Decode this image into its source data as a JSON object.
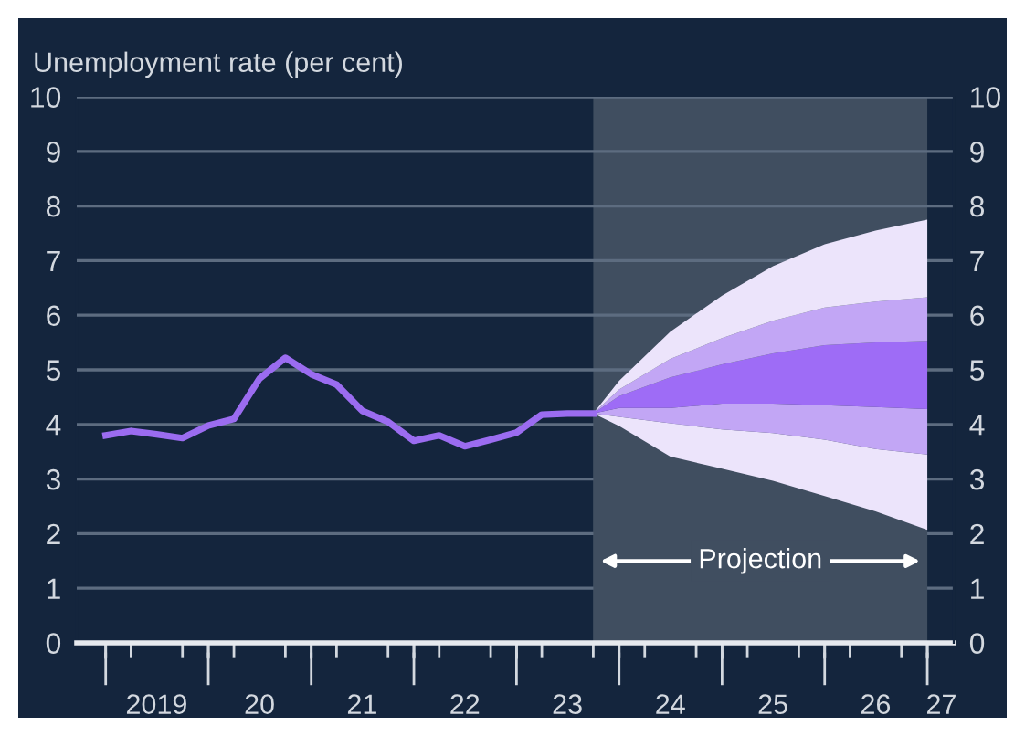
{
  "chart_data": {
    "type": "line",
    "ylabel": "Unemployment rate (per cent)",
    "xlim": [
      "2018-09-20",
      "2027-04-05"
    ],
    "xticks": [
      {
        "value": "2019-01-01",
        "label": null
      },
      {
        "value": "2019-04-01",
        "label": null
      },
      {
        "value": "2019-07-01",
        "label": "2019"
      },
      {
        "value": "2019-10-01",
        "label": null
      },
      {
        "value": "2020-01-01",
        "label": null
      },
      {
        "value": "2020-04-01",
        "label": null
      },
      {
        "value": "2020-07-01",
        "label": "20"
      },
      {
        "value": "2020-10-01",
        "label": null
      },
      {
        "value": "2021-01-01",
        "label": null
      },
      {
        "value": "2021-04-01",
        "label": null
      },
      {
        "value": "2021-07-01",
        "label": "21"
      },
      {
        "value": "2021-10-01",
        "label": null
      },
      {
        "value": "2022-01-01",
        "label": null
      },
      {
        "value": "2022-04-01",
        "label": null
      },
      {
        "value": "2022-07-01",
        "label": "22"
      },
      {
        "value": "2022-10-01",
        "label": null
      },
      {
        "value": "2023-01-01",
        "label": null
      },
      {
        "value": "2023-04-01",
        "label": null
      },
      {
        "value": "2023-07-01",
        "label": "23"
      },
      {
        "value": "2023-10-01",
        "label": null
      },
      {
        "value": "2024-01-01",
        "label": null
      },
      {
        "value": "2024-04-01",
        "label": null
      },
      {
        "value": "2024-07-01",
        "label": "24"
      },
      {
        "value": "2024-10-01",
        "label": null
      },
      {
        "value": "2025-01-01",
        "label": null
      },
      {
        "value": "2025-04-01",
        "label": null
      },
      {
        "value": "2025-07-01",
        "label": "25"
      },
      {
        "value": "2025-10-01",
        "label": null
      },
      {
        "value": "2026-01-01",
        "label": null
      },
      {
        "value": "2026-04-01",
        "label": null
      },
      {
        "value": "2026-07-01",
        "label": "26"
      },
      {
        "value": "2026-10-01",
        "label": null
      },
      {
        "value": "2027-01-01",
        "label": null
      },
      {
        "value": "2027-02-20",
        "label": "27"
      }
    ],
    "ylim": [
      0,
      10
    ],
    "yticks": [
      0,
      1,
      2,
      3,
      4,
      5,
      6,
      7,
      8,
      9,
      10
    ],
    "y2lim": [
      0,
      10
    ],
    "y2ticks": [
      0,
      1,
      2,
      3,
      4,
      5,
      6,
      7,
      8,
      9,
      10
    ],
    "grid": "y",
    "stacked": true,
    "series": [
      {
        "type": "area",
        "color": "#404e60",
        "x": [
          "2023-10",
          "2024-01",
          "2024-07",
          "2025-01",
          "2025-07",
          "2026-01",
          "2026-07",
          "2027-01"
        ],
        "values": [
          4.2,
          3.97,
          3.41,
          3.19,
          2.97,
          2.69,
          2.41,
          2.07
        ]
      },
      {
        "type": "area",
        "color": "#ece4fb",
        "x": [
          "2023-10",
          "2024-01",
          "2024-07",
          "2025-01",
          "2025-07",
          "2026-01",
          "2026-07",
          "2027-01"
        ],
        "values": [
          0,
          0.17,
          0.61,
          0.72,
          0.87,
          1.03,
          1.14,
          1.38
        ]
      },
      {
        "type": "area",
        "color": "#c2a6f5",
        "x": [
          "2023-10",
          "2024-01",
          "2024-07",
          "2025-01",
          "2025-07",
          "2026-01",
          "2026-07",
          "2027-01"
        ],
        "values": [
          0,
          0.16,
          0.28,
          0.47,
          0.54,
          0.63,
          0.77,
          0.83
        ]
      },
      {
        "type": "area",
        "color": "#9e6cf6",
        "x": [
          "2023-10",
          "2024-01",
          "2024-07",
          "2025-01",
          "2025-07",
          "2026-01",
          "2026-07",
          "2027-01"
        ],
        "values": [
          0,
          0.22,
          0.56,
          0.72,
          0.92,
          1.1,
          1.18,
          1.25
        ]
      },
      {
        "type": "area",
        "color": "#c2a6f5",
        "x": [
          "2023-10",
          "2024-01",
          "2024-07",
          "2025-01",
          "2025-07",
          "2026-01",
          "2026-07",
          "2027-01"
        ],
        "values": [
          0,
          0.12,
          0.34,
          0.48,
          0.6,
          0.69,
          0.75,
          0.8
        ]
      },
      {
        "type": "area",
        "color": "#ece4fb",
        "x": [
          "2023-10",
          "2024-01",
          "2024-07",
          "2025-01",
          "2025-07",
          "2026-01",
          "2026-07",
          "2027-01"
        ],
        "values": [
          0,
          0.16,
          0.5,
          0.78,
          1.0,
          1.16,
          1.3,
          1.42
        ]
      },
      {
        "color": "#9b6cf0",
        "x": [
          "2019-01",
          "2019-04",
          "2019-07",
          "2019-10",
          "2020-01",
          "2020-04",
          "2020-07",
          "2020-10",
          "2021-01",
          "2021-04",
          "2021-07",
          "2021-10",
          "2022-01",
          "2022-04",
          "2022-07",
          "2022-10",
          "2023-01",
          "2023-04",
          "2023-07",
          "2023-10"
        ],
        "values": [
          3.8,
          3.88,
          3.82,
          3.75,
          3.98,
          4.1,
          4.84,
          5.22,
          4.92,
          4.73,
          4.25,
          4.05,
          3.7,
          3.8,
          3.6,
          3.72,
          3.85,
          4.18,
          4.2,
          4.2
        ]
      }
    ],
    "bands": [
      {
        "axis": "x",
        "from": "2023-10",
        "to": "2027-01",
        "label": "Projection",
        "color": "#404e60"
      }
    ]
  }
}
